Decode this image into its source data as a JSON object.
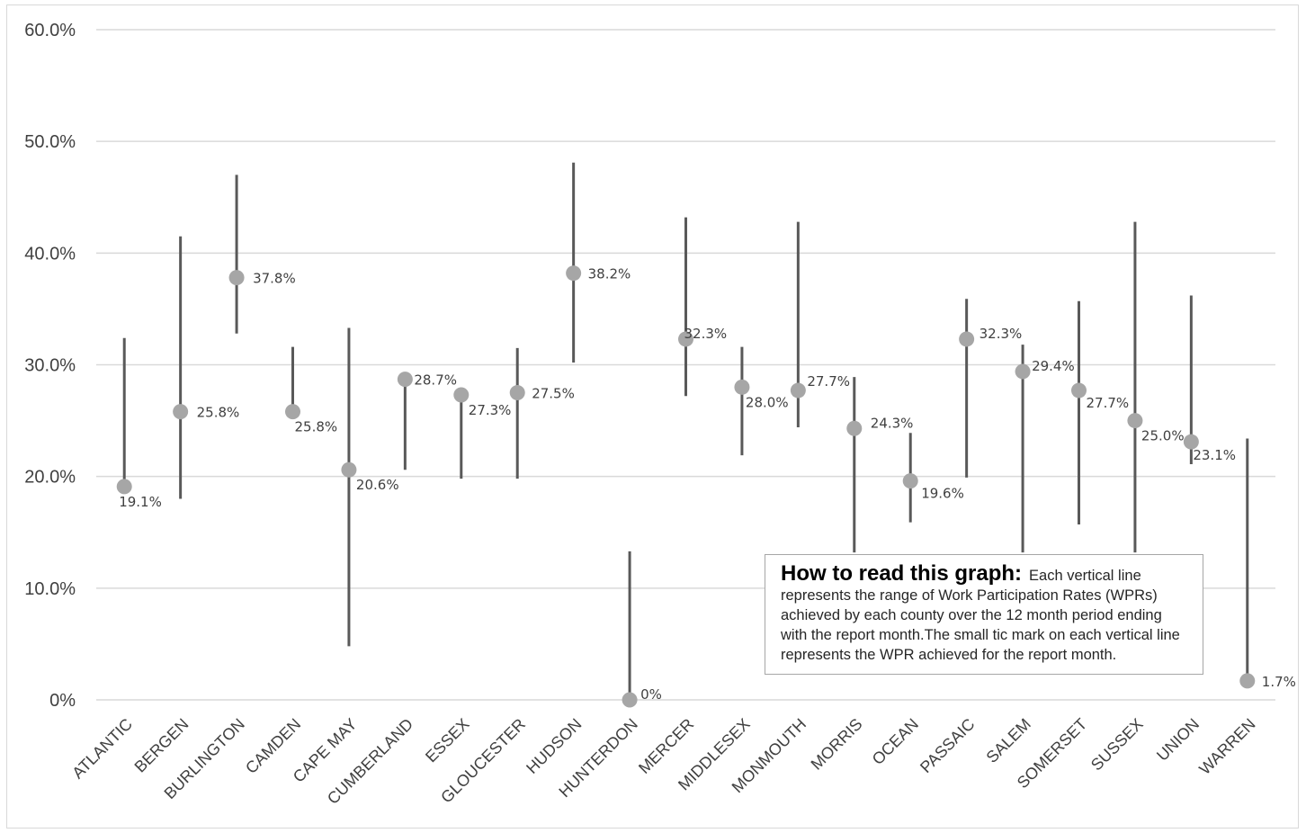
{
  "chart_data": {
    "type": "range-dot",
    "title": "",
    "xlabel": "",
    "ylabel": "",
    "ylim": [
      0,
      60
    ],
    "y_ticks": [
      "0%",
      "10.0%",
      "20.0%",
      "30.0%",
      "40.0%",
      "50.0%",
      "60.0%"
    ],
    "grid": true,
    "colors": {
      "range_line": "#595959",
      "dot": "#a6a6a6",
      "grid": "#d9d9d9",
      "text": "#404040"
    },
    "categories": [
      "ATLANTIC",
      "BERGEN",
      "BURLINGTON",
      "CAMDEN",
      "CAPE MAY",
      "CUMBERLAND",
      "ESSEX",
      "GLOUCESTER",
      "HUDSON",
      "HUNTERDON",
      "MERCER",
      "MIDDLESEX",
      "MONMOUTH",
      "MORRIS",
      "OCEAN",
      "PASSAIC",
      "SALEM",
      "SOMERSET",
      "SUSSEX",
      "UNION",
      "WARREN"
    ],
    "report_month": [
      19.1,
      25.8,
      37.8,
      25.8,
      20.6,
      28.7,
      27.3,
      27.5,
      38.2,
      0,
      32.3,
      28.0,
      27.7,
      24.3,
      19.6,
      32.3,
      29.4,
      27.7,
      25.0,
      23.1,
      1.7
    ],
    "labels": [
      "19.1%",
      "25.8%",
      "37.8%",
      "25.8%",
      "20.6%",
      "28.7%",
      "27.3%",
      "27.5%",
      "38.2%",
      "0%",
      "32.3%",
      "28.0%",
      "27.7%",
      "24.3%",
      "19.6%",
      "32.3%",
      "29.4%",
      "27.7%",
      "25.0%",
      "23.1%",
      "1.7%"
    ],
    "range_low": [
      19.1,
      18.0,
      32.8,
      25.8,
      4.8,
      20.6,
      19.8,
      19.8,
      30.2,
      0,
      27.2,
      21.9,
      24.4,
      13.2,
      15.9,
      19.9,
      13.2,
      15.7,
      13.2,
      21.1,
      1.7
    ],
    "range_high": [
      32.4,
      41.5,
      47.0,
      31.6,
      33.3,
      28.7,
      27.3,
      31.5,
      48.1,
      13.3,
      43.2,
      31.6,
      42.8,
      28.9,
      23.9,
      35.9,
      31.8,
      35.7,
      42.8,
      36.2,
      23.4
    ]
  },
  "note": {
    "title": "How to read this graph:",
    "body": "Each vertical line represents the range of Work Participation Rates (WPRs) achieved by each county over the 12 month period ending with the report month.The small tic mark on each vertical line represents the WPR achieved for the report month."
  }
}
